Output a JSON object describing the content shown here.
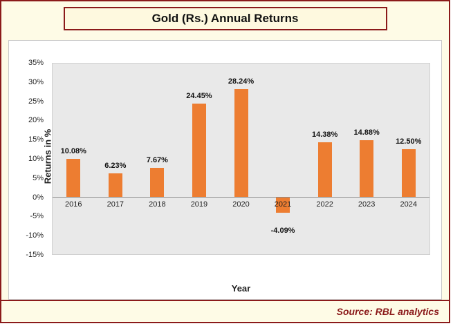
{
  "title": "Gold (Rs.) Annual Returns",
  "footer": {
    "source": "Source: RBL analytics"
  },
  "colors": {
    "bar": "#ED7D31",
    "frame": "#8B1A1A",
    "background": "#FEFBE6",
    "plot_background": "#E9E9E9"
  },
  "chart_data": {
    "type": "bar",
    "title": "Gold (Rs.) Annual Returns",
    "categories": [
      "2016",
      "2017",
      "2018",
      "2019",
      "2020",
      "2021",
      "2022",
      "2023",
      "2024"
    ],
    "values": [
      10.08,
      6.23,
      7.67,
      24.45,
      28.24,
      -4.09,
      14.38,
      14.88,
      12.5
    ],
    "labels": [
      "10.08%",
      "6.23%",
      "7.67%",
      "24.45%",
      "28.24%",
      "-4.09%",
      "14.38%",
      "14.88%",
      "12.50%"
    ],
    "xlabel": "Year",
    "ylabel": "Returns in %",
    "ylim": [
      -15,
      35
    ],
    "yticks": [
      35,
      30,
      25,
      20,
      15,
      10,
      5,
      0,
      -5,
      -10,
      -15
    ],
    "grid": false,
    "legend": false
  }
}
